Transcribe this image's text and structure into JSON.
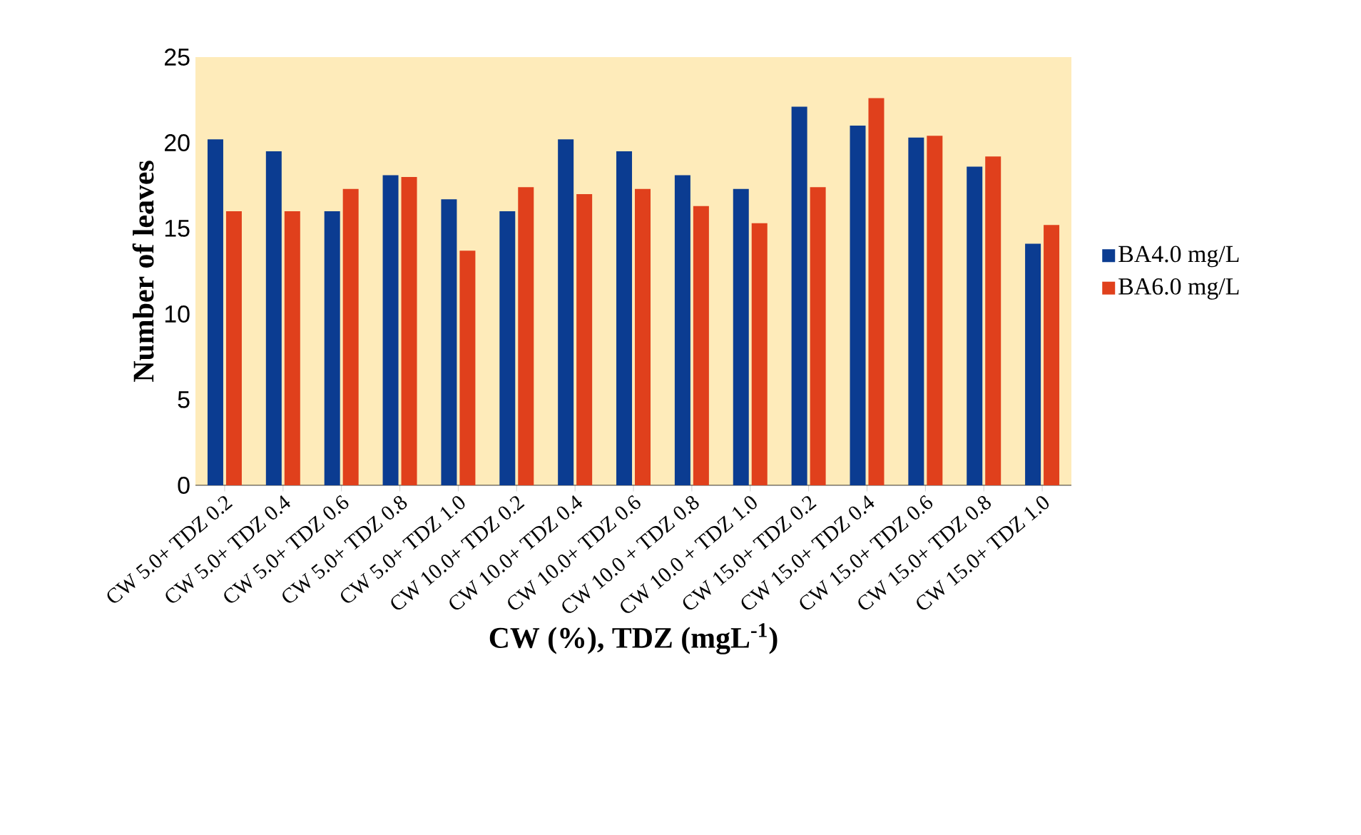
{
  "chart_data": {
    "type": "bar",
    "xlabel": "CW (%), TDZ (mgL$^{-1}$)",
    "ylabel": "Number of leaves",
    "categories": [
      "CW 5.0+ TDZ 0.2",
      "CW 5.0+ TDZ 0.4",
      "CW 5.0+ TDZ 0.6",
      "CW 5.0+ TDZ 0.8",
      "CW 5.0+ TDZ 1.0",
      "CW 10.0+ TDZ 0.2",
      "CW 10.0+ TDZ 0.4",
      "CW 10.0+ TDZ 0.6",
      "CW 10.0 + TDZ 0.8",
      "CW 10.0 + TDZ 1.0",
      "CW 15.0+ TDZ 0.2",
      "CW 15.0+ TDZ 0.4",
      "CW 15.0+ TDZ 0.6",
      "CW 15.0+ TDZ 0.8",
      "CW 15.0+ TDZ 1.0"
    ],
    "series": [
      {
        "name": "BA4.0 mg/L",
        "color": "#0b3c91",
        "values": [
          20.2,
          19.5,
          16.0,
          18.1,
          16.7,
          16.0,
          20.2,
          19.5,
          18.1,
          17.3,
          22.1,
          21.0,
          20.3,
          18.6,
          14.1
        ]
      },
      {
        "name": "BA6.0 mg/L",
        "color": "#e0401c",
        "values": [
          16.0,
          16.0,
          17.3,
          18.0,
          13.7,
          17.4,
          17.0,
          17.3,
          16.3,
          15.3,
          17.4,
          22.6,
          20.4,
          19.2,
          15.2
        ]
      }
    ],
    "ylim": [
      0,
      25
    ],
    "yticks": [
      0,
      5,
      10,
      15,
      20,
      25
    ],
    "grid": false,
    "legend": "right"
  }
}
